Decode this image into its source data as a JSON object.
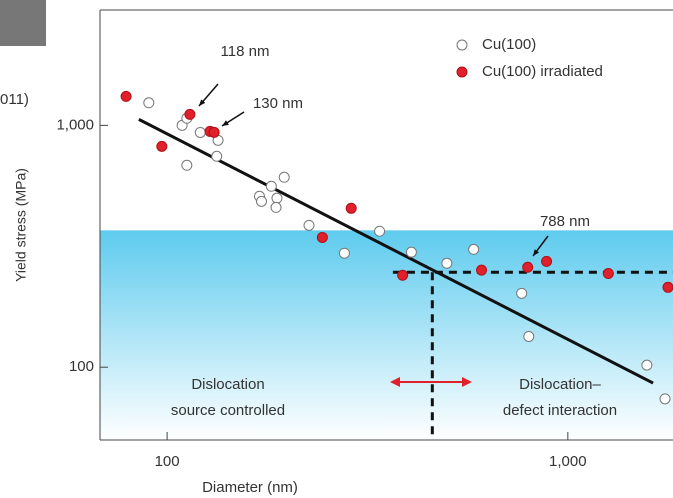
{
  "chart_data": {
    "type": "scatter",
    "cropped_text": "011)",
    "xlabel": "Diameter (nm)",
    "ylabel": "Yield stress (MPa)",
    "xscale": "log",
    "yscale": "log",
    "xlim": [
      68,
      1830
    ],
    "ylim": [
      50,
      3000
    ],
    "xticks": [
      100,
      {
        "value": 1000,
        "label": "1,000"
      }
    ],
    "yticks": [
      100,
      {
        "value": 1000,
        "label": "1,000"
      }
    ],
    "legend": "upper right",
    "series": [
      {
        "name": "Cu(100)",
        "color": "#ffffff",
        "edgecolor": "#777777",
        "x": [
          90,
          109,
          112,
          121,
          134,
          133,
          112,
          170,
          172,
          182,
          188,
          187,
          196,
          226,
          277,
          339,
          407,
          499,
          582,
          767,
          799,
          1575,
          1748
        ],
        "values": [
          1240,
          1000,
          1070,
          935,
          867,
          745,
          684,
          509,
          485,
          560,
          500,
          458,
          610,
          386,
          296,
          365,
          299,
          269,
          307,
          202,
          134,
          102,
          74
        ]
      },
      {
        "name": "Cu(100) irradiated",
        "color": "#e0202a",
        "edgecolor": "#b01018",
        "x": [
          79,
          97,
          114,
          128,
          131,
          288,
          244,
          387,
          609,
          794,
          885,
          1262,
          1778
        ],
        "values": [
          1318,
          819,
          1110,
          944,
          936,
          454,
          344,
          240,
          252,
          259,
          274,
          244,
          214
        ]
      }
    ],
    "fit": {
      "x": [
        85,
        1632
      ],
      "values": [
        1059,
        86
      ],
      "color": "#111111"
    },
    "shade_top": 368,
    "guide": {
      "x_start": 366,
      "y": 247,
      "x": 459
    },
    "annotations": [
      "118 nm",
      "130 nm",
      "788 nm"
    ],
    "regions": [
      [
        "Dislocation",
        "source controlled"
      ],
      [
        "Dislocation–",
        "defect interaction"
      ]
    ]
  }
}
